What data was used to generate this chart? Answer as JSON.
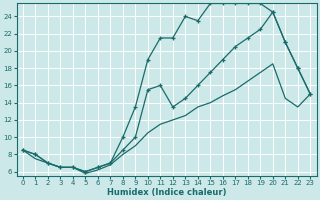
{
  "xlabel": "Humidex (Indice chaleur)",
  "ylabel": "",
  "bg_color": "#cce8e8",
  "grid_color": "#aad4d4",
  "line_color": "#1a6b6b",
  "xlim": [
    -0.5,
    23.5
  ],
  "ylim": [
    5.5,
    25.5
  ],
  "yticks": [
    6,
    8,
    10,
    12,
    14,
    16,
    18,
    20,
    22,
    24
  ],
  "xticks": [
    0,
    1,
    2,
    3,
    4,
    5,
    6,
    7,
    8,
    9,
    10,
    11,
    12,
    13,
    14,
    15,
    16,
    17,
    18,
    19,
    20,
    21,
    22,
    23
  ],
  "line1_x": [
    0,
    1,
    2,
    3,
    4,
    5,
    6,
    7,
    8,
    9,
    10,
    11,
    12,
    13,
    14,
    15,
    16,
    17,
    18,
    19,
    20,
    21,
    22,
    23
  ],
  "line1_y": [
    8.5,
    8.0,
    7.0,
    6.5,
    6.5,
    6.0,
    6.5,
    7.0,
    10.0,
    13.5,
    19.0,
    21.5,
    21.5,
    24.0,
    23.5,
    25.5,
    25.5,
    25.5,
    25.5,
    25.5,
    24.5,
    21.0,
    18.0,
    15.0
  ],
  "line2_x": [
    0,
    1,
    2,
    3,
    4,
    5,
    6,
    7,
    8,
    9,
    10,
    11,
    12,
    13,
    14,
    15,
    16,
    17,
    18,
    19,
    20,
    21,
    22,
    23
  ],
  "line2_y": [
    8.5,
    8.0,
    7.0,
    6.5,
    6.5,
    6.0,
    6.5,
    7.0,
    8.5,
    10.0,
    15.5,
    16.0,
    13.5,
    14.5,
    16.0,
    17.5,
    19.0,
    20.5,
    21.5,
    22.5,
    24.5,
    21.0,
    18.0,
    15.0
  ],
  "line3_x": [
    0,
    1,
    2,
    3,
    4,
    5,
    6,
    7,
    8,
    9,
    10,
    11,
    12,
    13,
    14,
    15,
    16,
    17,
    18,
    19,
    20,
    21,
    22,
    23
  ],
  "line3_y": [
    8.5,
    7.5,
    7.0,
    6.5,
    6.5,
    5.8,
    6.2,
    6.8,
    8.0,
    9.0,
    10.5,
    11.5,
    12.0,
    12.5,
    13.5,
    14.0,
    14.8,
    15.5,
    16.5,
    17.5,
    18.5,
    14.5,
    13.5,
    15.0
  ]
}
